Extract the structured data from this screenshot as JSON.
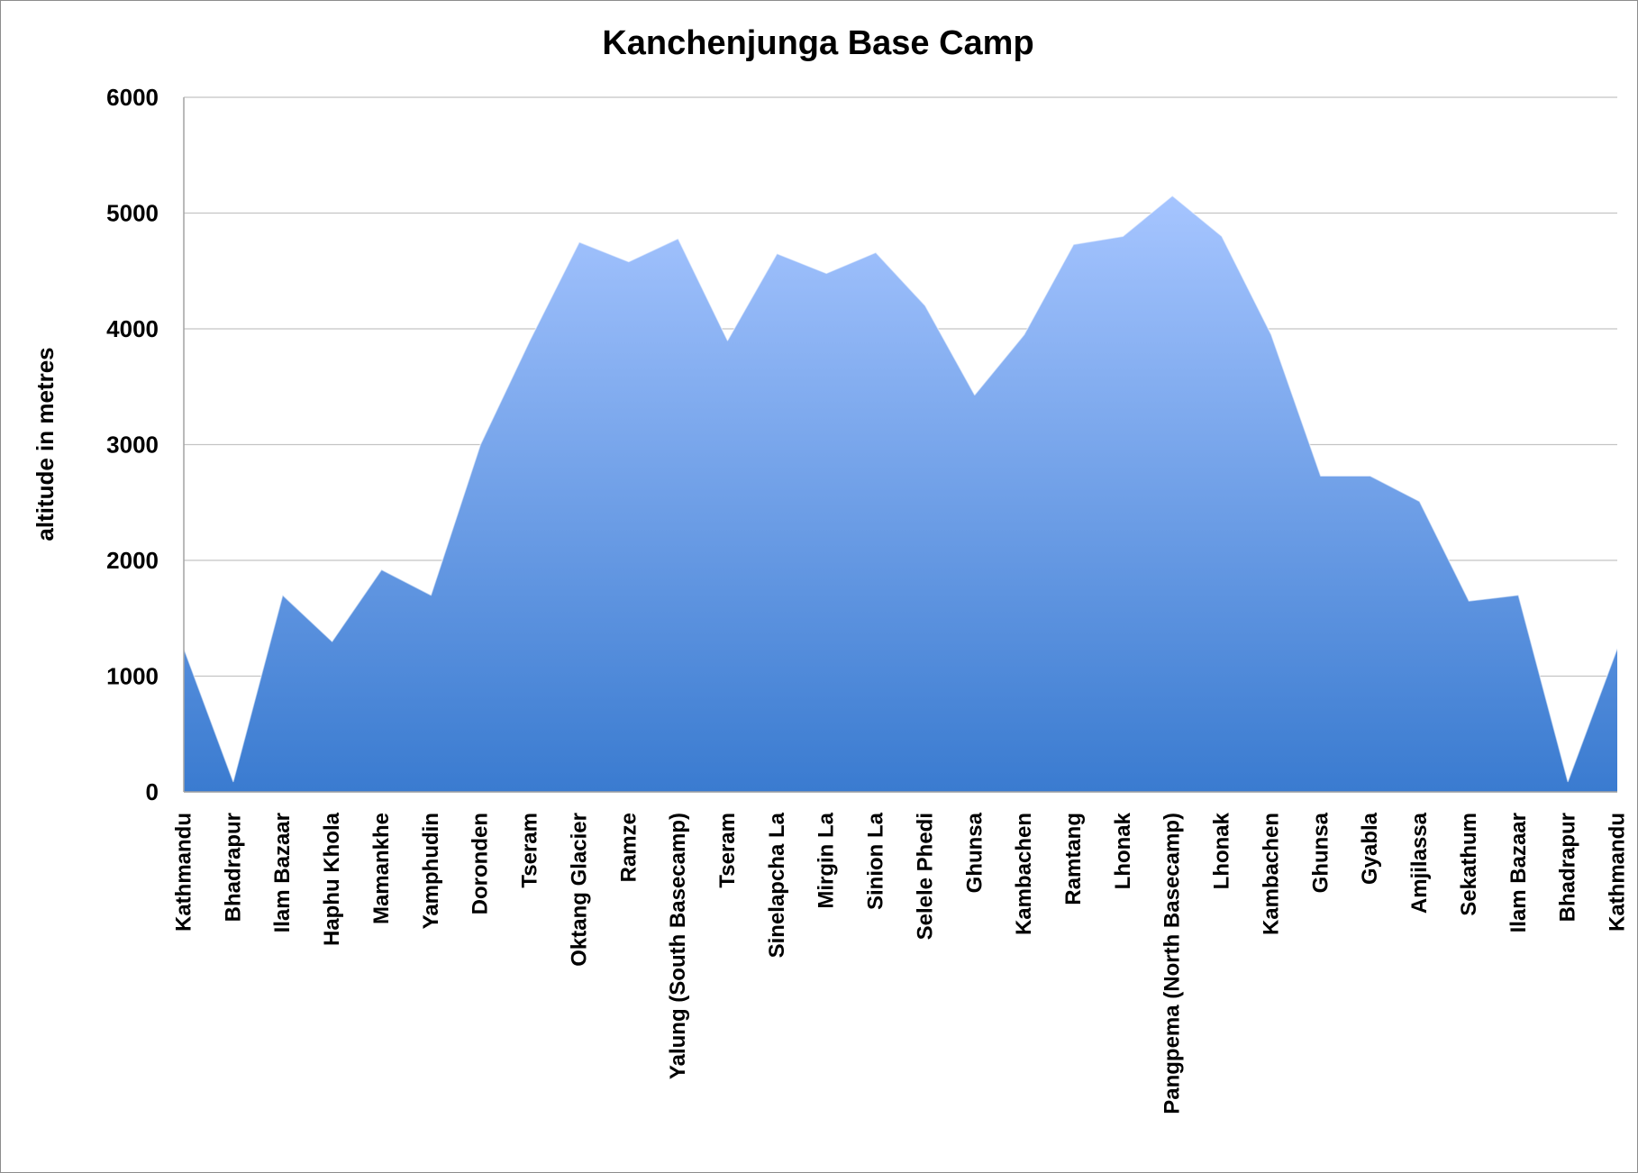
{
  "chart_data": {
    "type": "area",
    "title": "Kanchenjunga Base Camp",
    "ylabel": "altitude in metres",
    "ylim": [
      0,
      6000
    ],
    "yticks": [
      0,
      1000,
      2000,
      3000,
      4000,
      5000,
      6000
    ],
    "grid": true,
    "legend": "none",
    "categories": [
      "Kathmandu",
      "Bhadrapur",
      "Ilam Bazaar",
      "Haphu Khola",
      "Mamankhe",
      "Yamphudin",
      "Doronden",
      "Tseram",
      "Oktang Glacier",
      "Ramze",
      "Yalung (South Basecamp)",
      "Tseram",
      "Sinelapcha La",
      "Mirgin La",
      "Sinion La",
      "Selele Phedi",
      "Ghunsa",
      "Kambachen",
      "Ramtang",
      "Lhonak",
      "Pangpema (North Basecamp)",
      "Lhonak",
      "Kambachen",
      "Ghunsa",
      "Gyabla",
      "Amjilassa",
      "Sekathum",
      "Ilam Bazaar",
      "Bhadrapur",
      "Kathmandu"
    ],
    "series": [
      {
        "values": [
          1240,
          90,
          1700,
          1300,
          1920,
          1700,
          3000,
          3900,
          4750,
          4580,
          4780,
          3900,
          4650,
          4480,
          4660,
          4200,
          3430,
          3950,
          4730,
          4800,
          5150,
          4800,
          3950,
          2730,
          2730,
          2510,
          1650,
          1700,
          90,
          1240
        ]
      }
    ]
  },
  "colors": {
    "area_top": "#a6c5ff",
    "area_bottom": "#3a7bd0",
    "gridline": "#c4c4c4",
    "axis": "#a3a3a3",
    "border": "#8c8c8c"
  }
}
